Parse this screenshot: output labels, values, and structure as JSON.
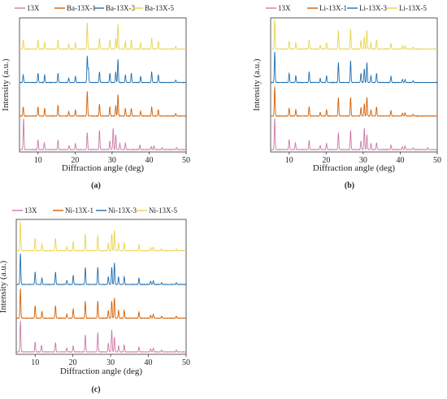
{
  "figure": {
    "panels": [
      "a",
      "b",
      "c"
    ]
  },
  "chart_data": [
    {
      "panel": "a",
      "caption": "(a)",
      "type": "line",
      "xlabel": "Diffraction angle (deg)",
      "ylabel": "Intensity (a.u.)",
      "xlim": [
        5,
        50
      ],
      "xticks": [
        10,
        20,
        30,
        40,
        50
      ],
      "legend_position": "top",
      "series": [
        {
          "name": "13X",
          "color": "#cc79a7",
          "offset": 0,
          "peaks": [
            [
              6.1,
              1.0
            ],
            [
              10.0,
              0.32
            ],
            [
              11.7,
              0.22
            ],
            [
              15.4,
              0.3
            ],
            [
              18.4,
              0.13
            ],
            [
              20.1,
              0.2
            ],
            [
              23.3,
              0.55
            ],
            [
              26.6,
              0.62
            ],
            [
              29.4,
              0.28
            ],
            [
              30.3,
              0.7
            ],
            [
              31.0,
              0.48
            ],
            [
              32.1,
              0.2
            ],
            [
              33.6,
              0.22
            ],
            [
              37.5,
              0.15
            ],
            [
              40.6,
              0.1
            ],
            [
              41.3,
              0.12
            ],
            [
              43.5,
              0.06
            ],
            [
              47.4,
              0.06
            ]
          ]
        },
        {
          "name": "Ba-13X-1",
          "color": "#d55e00",
          "offset": 1,
          "peaks": [
            [
              6.0,
              0.3
            ],
            [
              10.0,
              0.3
            ],
            [
              11.8,
              0.25
            ],
            [
              15.4,
              0.35
            ],
            [
              18.3,
              0.15
            ],
            [
              20.1,
              0.2
            ],
            [
              23.3,
              0.8
            ],
            [
              26.6,
              0.38
            ],
            [
              29.4,
              0.3
            ],
            [
              31.0,
              0.35
            ],
            [
              31.6,
              0.7
            ],
            [
              33.6,
              0.25
            ],
            [
              35.2,
              0.25
            ],
            [
              37.7,
              0.15
            ],
            [
              40.7,
              0.3
            ],
            [
              42.5,
              0.2
            ],
            [
              47.2,
              0.08
            ]
          ]
        },
        {
          "name": "Ba-13X-3",
          "color": "#1f6fb0",
          "offset": 2,
          "peaks": [
            [
              6.0,
              0.25
            ],
            [
              10.0,
              0.3
            ],
            [
              11.8,
              0.25
            ],
            [
              15.4,
              0.3
            ],
            [
              18.3,
              0.15
            ],
            [
              20.1,
              0.2
            ],
            [
              23.3,
              0.85
            ],
            [
              23.6,
              0.45
            ],
            [
              26.6,
              0.35
            ],
            [
              29.4,
              0.3
            ],
            [
              31.0,
              0.35
            ],
            [
              31.6,
              0.75
            ],
            [
              33.6,
              0.25
            ],
            [
              35.2,
              0.3
            ],
            [
              37.7,
              0.2
            ],
            [
              40.7,
              0.35
            ],
            [
              42.5,
              0.25
            ],
            [
              47.2,
              0.08
            ]
          ]
        },
        {
          "name": "Ba-13X-5",
          "color": "#e8d44d",
          "offset": 3,
          "peaks": [
            [
              6.0,
              0.3
            ],
            [
              10.0,
              0.3
            ],
            [
              11.8,
              0.22
            ],
            [
              15.4,
              0.3
            ],
            [
              18.3,
              0.15
            ],
            [
              20.1,
              0.2
            ],
            [
              23.3,
              0.85
            ],
            [
              26.6,
              0.35
            ],
            [
              29.4,
              0.3
            ],
            [
              31.0,
              0.35
            ],
            [
              31.6,
              0.8
            ],
            [
              33.6,
              0.25
            ],
            [
              35.2,
              0.3
            ],
            [
              37.7,
              0.2
            ],
            [
              40.7,
              0.35
            ],
            [
              42.5,
              0.25
            ],
            [
              47.2,
              0.08
            ]
          ]
        }
      ]
    },
    {
      "panel": "b",
      "caption": "(b)",
      "type": "line",
      "xlabel": "Diffraction angle (deg)",
      "ylabel": "Intensity (a.u.)",
      "xlim": [
        5,
        50
      ],
      "xticks": [
        10,
        20,
        30,
        40,
        50
      ],
      "legend_position": "top",
      "series": [
        {
          "name": "13X",
          "color": "#cc79a7",
          "offset": 0,
          "peaks": [
            [
              6.1,
              1.0
            ],
            [
              10.0,
              0.32
            ],
            [
              11.7,
              0.22
            ],
            [
              15.4,
              0.3
            ],
            [
              18.4,
              0.13
            ],
            [
              20.1,
              0.2
            ],
            [
              23.3,
              0.55
            ],
            [
              26.6,
              0.62
            ],
            [
              29.4,
              0.28
            ],
            [
              30.3,
              0.7
            ],
            [
              31.0,
              0.48
            ],
            [
              32.1,
              0.2
            ],
            [
              33.6,
              0.22
            ],
            [
              37.5,
              0.15
            ],
            [
              40.6,
              0.1
            ],
            [
              41.3,
              0.12
            ],
            [
              43.5,
              0.06
            ],
            [
              47.4,
              0.06
            ]
          ]
        },
        {
          "name": "Li-13X-1",
          "color": "#d55e00",
          "offset": 1,
          "peaks": [
            [
              6.1,
              0.95
            ],
            [
              10.0,
              0.25
            ],
            [
              11.8,
              0.2
            ],
            [
              15.4,
              0.3
            ],
            [
              18.4,
              0.12
            ],
            [
              20.1,
              0.2
            ],
            [
              23.3,
              0.6
            ],
            [
              26.6,
              0.6
            ],
            [
              29.4,
              0.28
            ],
            [
              30.3,
              0.4
            ],
            [
              31.0,
              0.6
            ],
            [
              32.1,
              0.2
            ],
            [
              33.6,
              0.3
            ],
            [
              37.5,
              0.18
            ],
            [
              40.6,
              0.1
            ],
            [
              41.3,
              0.1
            ],
            [
              43.5,
              0.06
            ]
          ]
        },
        {
          "name": "Li-13X-3",
          "color": "#1f6fb0",
          "offset": 2,
          "peaks": [
            [
              6.1,
              1.0
            ],
            [
              10.0,
              0.3
            ],
            [
              11.8,
              0.22
            ],
            [
              15.4,
              0.35
            ],
            [
              18.4,
              0.13
            ],
            [
              20.1,
              0.22
            ],
            [
              23.3,
              0.65
            ],
            [
              26.6,
              0.7
            ],
            [
              29.4,
              0.3
            ],
            [
              30.3,
              0.45
            ],
            [
              31.0,
              0.65
            ],
            [
              32.1,
              0.22
            ],
            [
              33.6,
              0.3
            ],
            [
              37.5,
              0.2
            ],
            [
              40.6,
              0.1
            ],
            [
              41.3,
              0.1
            ],
            [
              43.5,
              0.06
            ]
          ]
        },
        {
          "name": "Li-13X-5",
          "color": "#e8d44d",
          "offset": 3,
          "peaks": [
            [
              6.1,
              0.95
            ],
            [
              10.0,
              0.25
            ],
            [
              11.8,
              0.2
            ],
            [
              15.4,
              0.3
            ],
            [
              18.4,
              0.12
            ],
            [
              20.1,
              0.2
            ],
            [
              23.3,
              0.6
            ],
            [
              26.6,
              0.65
            ],
            [
              29.4,
              0.28
            ],
            [
              30.3,
              0.4
            ],
            [
              31.0,
              0.6
            ],
            [
              32.1,
              0.2
            ],
            [
              33.6,
              0.3
            ],
            [
              37.5,
              0.18
            ],
            [
              40.6,
              0.1
            ],
            [
              41.3,
              0.1
            ],
            [
              43.5,
              0.06
            ]
          ]
        }
      ]
    },
    {
      "panel": "c",
      "caption": "(c)",
      "type": "line",
      "xlabel": "Diffraction angle (deg)",
      "ylabel": "Intensity (a.u.)",
      "xlim": [
        5,
        50
      ],
      "xticks": [
        10,
        20,
        30,
        40,
        50
      ],
      "legend_position": "top",
      "series": [
        {
          "name": "13X",
          "color": "#cc79a7",
          "offset": 0,
          "peaks": [
            [
              6.1,
              1.0
            ],
            [
              10.0,
              0.32
            ],
            [
              11.7,
              0.22
            ],
            [
              15.4,
              0.3
            ],
            [
              18.4,
              0.13
            ],
            [
              20.1,
              0.2
            ],
            [
              23.3,
              0.55
            ],
            [
              26.6,
              0.62
            ],
            [
              29.4,
              0.28
            ],
            [
              30.3,
              0.7
            ],
            [
              31.0,
              0.48
            ],
            [
              32.1,
              0.2
            ],
            [
              33.6,
              0.22
            ],
            [
              37.5,
              0.15
            ],
            [
              40.6,
              0.1
            ],
            [
              41.3,
              0.12
            ],
            [
              43.5,
              0.06
            ],
            [
              47.4,
              0.06
            ]
          ]
        },
        {
          "name": "Ni-13X-1",
          "color": "#d55e00",
          "offset": 1,
          "peaks": [
            [
              6.1,
              0.95
            ],
            [
              10.0,
              0.4
            ],
            [
              11.8,
              0.22
            ],
            [
              15.4,
              0.4
            ],
            [
              18.4,
              0.13
            ],
            [
              20.1,
              0.3
            ],
            [
              23.3,
              0.55
            ],
            [
              26.6,
              0.55
            ],
            [
              29.4,
              0.25
            ],
            [
              30.3,
              0.55
            ],
            [
              31.0,
              0.65
            ],
            [
              32.1,
              0.25
            ],
            [
              33.6,
              0.25
            ],
            [
              37.5,
              0.2
            ],
            [
              40.6,
              0.1
            ],
            [
              41.3,
              0.12
            ],
            [
              43.5,
              0.06
            ],
            [
              47.4,
              0.06
            ]
          ]
        },
        {
          "name": "Ni-13X-3",
          "color": "#1f6fb0",
          "offset": 2,
          "peaks": [
            [
              6.1,
              1.0
            ],
            [
              10.0,
              0.4
            ],
            [
              11.8,
              0.22
            ],
            [
              15.4,
              0.4
            ],
            [
              18.4,
              0.13
            ],
            [
              20.1,
              0.3
            ],
            [
              23.3,
              0.55
            ],
            [
              26.6,
              0.55
            ],
            [
              29.4,
              0.25
            ],
            [
              30.3,
              0.55
            ],
            [
              31.0,
              0.7
            ],
            [
              32.1,
              0.25
            ],
            [
              33.6,
              0.25
            ],
            [
              37.5,
              0.2
            ],
            [
              40.6,
              0.1
            ],
            [
              41.3,
              0.12
            ],
            [
              43.5,
              0.06
            ],
            [
              47.4,
              0.06
            ]
          ]
        },
        {
          "name": "Ni-13X-5",
          "color": "#e8d44d",
          "offset": 3,
          "peaks": [
            [
              6.1,
              0.95
            ],
            [
              10.0,
              0.4
            ],
            [
              11.8,
              0.22
            ],
            [
              15.4,
              0.4
            ],
            [
              18.4,
              0.13
            ],
            [
              20.1,
              0.3
            ],
            [
              23.3,
              0.55
            ],
            [
              26.6,
              0.5
            ],
            [
              29.4,
              0.25
            ],
            [
              30.3,
              0.55
            ],
            [
              31.0,
              0.65
            ],
            [
              32.1,
              0.25
            ],
            [
              33.6,
              0.25
            ],
            [
              37.5,
              0.2
            ],
            [
              40.6,
              0.1
            ],
            [
              41.3,
              0.12
            ],
            [
              43.5,
              0.06
            ],
            [
              47.4,
              0.06
            ]
          ]
        }
      ]
    }
  ]
}
